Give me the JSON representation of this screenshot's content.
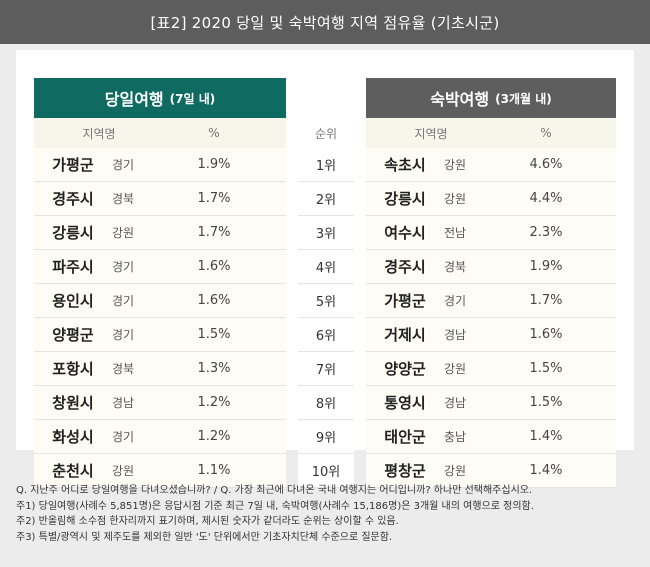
{
  "header": {
    "title": "[표2] 2020 당일 및 숙박여행 지역 점유율 (기초시군)"
  },
  "day_trip": {
    "title": "당일여행",
    "subtitle": "(7일 내)",
    "col_region": "지역명",
    "col_pct": "%",
    "rows": [
      {
        "city": "가평군",
        "prov": "경기",
        "pct": "1.9%"
      },
      {
        "city": "경주시",
        "prov": "경북",
        "pct": "1.7%"
      },
      {
        "city": "강릉시",
        "prov": "강원",
        "pct": "1.7%"
      },
      {
        "city": "파주시",
        "prov": "경기",
        "pct": "1.6%"
      },
      {
        "city": "용인시",
        "prov": "경기",
        "pct": "1.6%"
      },
      {
        "city": "양평군",
        "prov": "경기",
        "pct": "1.5%"
      },
      {
        "city": "포항시",
        "prov": "경북",
        "pct": "1.3%"
      },
      {
        "city": "창원시",
        "prov": "경남",
        "pct": "1.2%"
      },
      {
        "city": "화성시",
        "prov": "경기",
        "pct": "1.2%"
      },
      {
        "city": "춘천시",
        "prov": "강원",
        "pct": "1.1%"
      }
    ]
  },
  "rank": {
    "header": "순위",
    "values": [
      "1위",
      "2위",
      "3위",
      "4위",
      "5위",
      "6위",
      "7위",
      "8위",
      "9위",
      "10위"
    ]
  },
  "overnight": {
    "title": "숙박여행",
    "subtitle": "(3개월 내)",
    "col_region": "지역명",
    "col_pct": "%",
    "rows": [
      {
        "city": "속초시",
        "prov": "강원",
        "pct": "4.6%"
      },
      {
        "city": "강릉시",
        "prov": "강원",
        "pct": "4.4%"
      },
      {
        "city": "여수시",
        "prov": "전남",
        "pct": "2.3%"
      },
      {
        "city": "경주시",
        "prov": "경북",
        "pct": "1.9%"
      },
      {
        "city": "가평군",
        "prov": "경기",
        "pct": "1.7%"
      },
      {
        "city": "거제시",
        "prov": "경남",
        "pct": "1.6%"
      },
      {
        "city": "양양군",
        "prov": "강원",
        "pct": "1.5%"
      },
      {
        "city": "통영시",
        "prov": "경남",
        "pct": "1.5%"
      },
      {
        "city": "태안군",
        "prov": "충남",
        "pct": "1.4%"
      },
      {
        "city": "평창군",
        "prov": "강원",
        "pct": "1.4%"
      }
    ]
  },
  "notes": [
    "Q. 지난주 어디로 당일여행을 다녀오셨습니까? / Q. 가장 최근에 다녀온 국내 여행지는 어디입니까? 하나만 선택해주십시오.",
    "주1) 당일여행(사례수 5,851명)은 응답시점 기준 최근 7일 내, 숙박여행(사례수 15,186명)은 3개월 내의 여행으로 정의함.",
    "주2) 반올림해 소수점 한자리까지 표기하며, 제시된 숫자가 같더라도 순위는 상이할 수 있음.",
    "주3) 특별/광역시 및 제주도를 제외한 일반 '도' 단위에서만 기초자치단체 수준으로 질문함."
  ],
  "colors": {
    "header_bg": "#5d5d5d",
    "day_title_bg": "#0f6a61",
    "overnight_title_bg": "#5e5e5e",
    "subhead_bg": "#f6f7ea"
  }
}
